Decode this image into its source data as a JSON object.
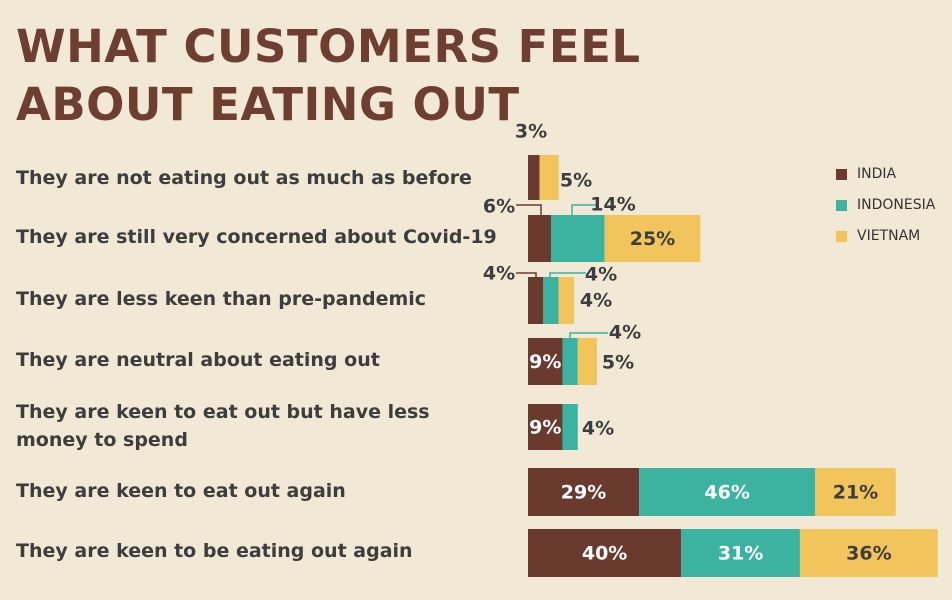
{
  "title": "WHAT CUSTOMERS FEEL ABOUT EATING OUT",
  "colors": {
    "india": "#6b3a2e",
    "indonesia": "#3cb3a0",
    "vietnam": "#f1c55c"
  },
  "legend": [
    {
      "label": "INDIA",
      "color": "#6b3a2e"
    },
    {
      "label": "INDONESIA",
      "color": "#3cb3a0"
    },
    {
      "label": "VIETNAM",
      "color": "#f1c55c"
    }
  ],
  "chart_data": {
    "type": "bar",
    "orientation": "horizontal",
    "stacked": true,
    "title": "WHAT CUSTOMERS FEEL ABOUT EATING OUT",
    "categories": [
      "They are not eating out as much as before",
      "They are still very concerned about Covid-19",
      "They are less keen than pre-pandemic",
      "They are neutral about eating out",
      "They are keen to eat out but have less money to spend",
      "They are keen to eat out again",
      "They are keen to be eating out again"
    ],
    "series": [
      {
        "name": "INDIA",
        "values": [
          3,
          6,
          4,
          9,
          9,
          29,
          40
        ],
        "labels": [
          "3%",
          "6%",
          "4%",
          "9%",
          "9%",
          "29%",
          "40%"
        ]
      },
      {
        "name": "INDONESIA",
        "values": [
          0,
          14,
          4,
          4,
          4,
          46,
          31
        ],
        "labels": [
          "",
          "14%",
          "4%",
          "4%",
          "4%",
          "46%",
          "31%"
        ]
      },
      {
        "name": "VIETNAM",
        "values": [
          5,
          25,
          4,
          5,
          0,
          21,
          36
        ],
        "labels": [
          "5%",
          "25%",
          "4%",
          "5%",
          "",
          "21%",
          "36%"
        ]
      }
    ],
    "legend_position": "top-right",
    "grid": false
  }
}
